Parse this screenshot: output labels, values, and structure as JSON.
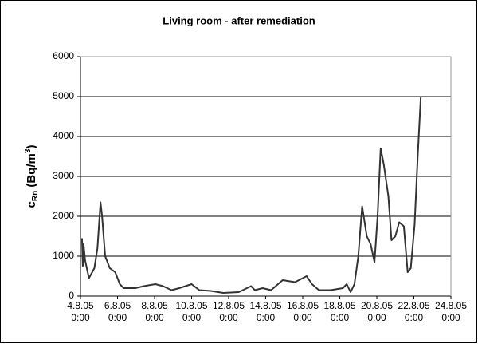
{
  "chart_data": {
    "type": "line",
    "title": "Living room - after remediation",
    "y_label": "cRn (Bq/m3)",
    "x": [
      "2005-08-04 02:00",
      "2005-08-04 03:00",
      "2005-08-04 04:00",
      "2005-08-04 06:00",
      "2005-08-04 11:00",
      "2005-08-04 18:00",
      "2005-08-04 22:00",
      "2005-08-05 02:00",
      "2005-08-05 04:00",
      "2005-08-05 08:00",
      "2005-08-05 14:00",
      "2005-08-05 21:00",
      "2005-08-06 03:00",
      "2005-08-06 08:00",
      "2005-08-06 23:00",
      "2005-08-07 10:00",
      "2005-08-08 01:00",
      "2005-08-08 11:00",
      "2005-08-08 22:00",
      "2005-08-09 08:00",
      "2005-08-10 00:00",
      "2005-08-10 10:00",
      "2005-08-11 01:00",
      "2005-08-11 17:00",
      "2005-08-12 13:00",
      "2005-08-13 05:00",
      "2005-08-13 10:00",
      "2005-08-13 20:00",
      "2005-08-14 07:00",
      "2005-08-14 22:00",
      "2005-08-15 14:00",
      "2005-08-16 05:00",
      "2005-08-16 12:00",
      "2005-08-16 21:00",
      "2005-08-17 12:00",
      "2005-08-18 04:00",
      "2005-08-18 09:00",
      "2005-08-18 14:00",
      "2005-08-18 19:00",
      "2005-08-19 00:00",
      "2005-08-19 05:00",
      "2005-08-19 11:00",
      "2005-08-19 16:00",
      "2005-08-19 21:00",
      "2005-08-20 01:00",
      "2005-08-20 05:00",
      "2005-08-20 09:00",
      "2005-08-20 15:00",
      "2005-08-20 19:00",
      "2005-08-21 00:00",
      "2005-08-21 05:00",
      "2005-08-21 11:00",
      "2005-08-21 16:00",
      "2005-08-21 20:00",
      "2005-08-22 01:00",
      "2005-08-22 05:00",
      "2005-08-22 09:00"
    ],
    "values": [
      1450,
      750,
      1300,
      900,
      450,
      700,
      1200,
      2350,
      2000,
      1000,
      700,
      600,
      300,
      200,
      200,
      250,
      300,
      250,
      150,
      200,
      300,
      150,
      130,
      80,
      100,
      250,
      150,
      200,
      150,
      400,
      350,
      500,
      300,
      150,
      150,
      200,
      300,
      100,
      300,
      1000,
      2250,
      1500,
      1300,
      850,
      2000,
      3700,
      3300,
      2500,
      1400,
      1500,
      1850,
      1750,
      600,
      700,
      1800,
      3500,
      5000
    ],
    "color": "#333333",
    "xlim": [
      "2005-08-04 00:00",
      "2005-08-24 00:00"
    ],
    "xticks": [
      {
        "value": "2005-08-04 00:00",
        "label": [
          "4.8.05",
          "0:00"
        ]
      },
      {
        "value": "2005-08-06 00:00",
        "label": [
          "6.8.05",
          "0:00"
        ]
      },
      {
        "value": "2005-08-08 00:00",
        "label": [
          "8.8.05",
          "0:00"
        ]
      },
      {
        "value": "2005-08-10 00:00",
        "label": [
          "10.8.05",
          "0:00"
        ]
      },
      {
        "value": "2005-08-12 00:00",
        "label": [
          "12.8.05",
          "0:00"
        ]
      },
      {
        "value": "2005-08-14 00:00",
        "label": [
          "14.8.05",
          "0:00"
        ]
      },
      {
        "value": "2005-08-16 00:00",
        "label": [
          "16.8.05",
          "0:00"
        ]
      },
      {
        "value": "2005-08-18 00:00",
        "label": [
          "18.8.05",
          "0:00"
        ]
      },
      {
        "value": "2005-08-20 00:00",
        "label": [
          "20.8.05",
          "0:00"
        ]
      },
      {
        "value": "2005-08-22 00:00",
        "label": [
          "22.8.05",
          "0:00"
        ]
      },
      {
        "value": "2005-08-24 00:00",
        "label": [
          "24.8.05",
          "0:00"
        ]
      }
    ],
    "ylim": [
      0,
      6000
    ],
    "yticks": [
      0,
      1000,
      2000,
      3000,
      4000,
      5000,
      6000
    ],
    "grid": true
  }
}
